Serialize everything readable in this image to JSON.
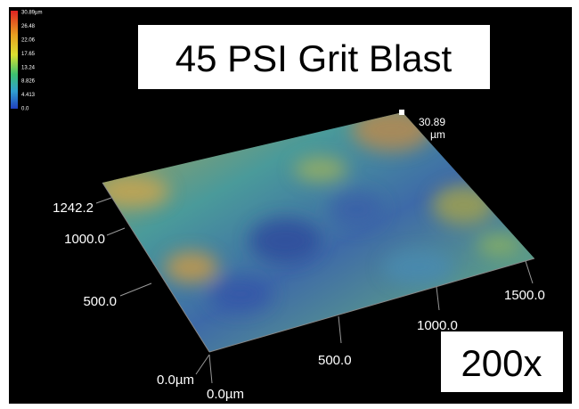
{
  "title": "45 PSI Grit Blast",
  "magnification": "200x",
  "colorbar": {
    "labels": [
      "30.89µm",
      "26.48",
      "22.06",
      "17.65",
      "13.24",
      "8.826",
      "4.413",
      "0.0"
    ]
  },
  "peak": {
    "value": "30.89",
    "unit": "µm"
  },
  "y_axis": {
    "labels": [
      "1242.2",
      "1000.0",
      "500.0",
      "0.0µm"
    ]
  },
  "x_axis": {
    "labels": [
      "0.0µm",
      "500.0",
      "1000.0",
      "1500.0"
    ]
  }
}
